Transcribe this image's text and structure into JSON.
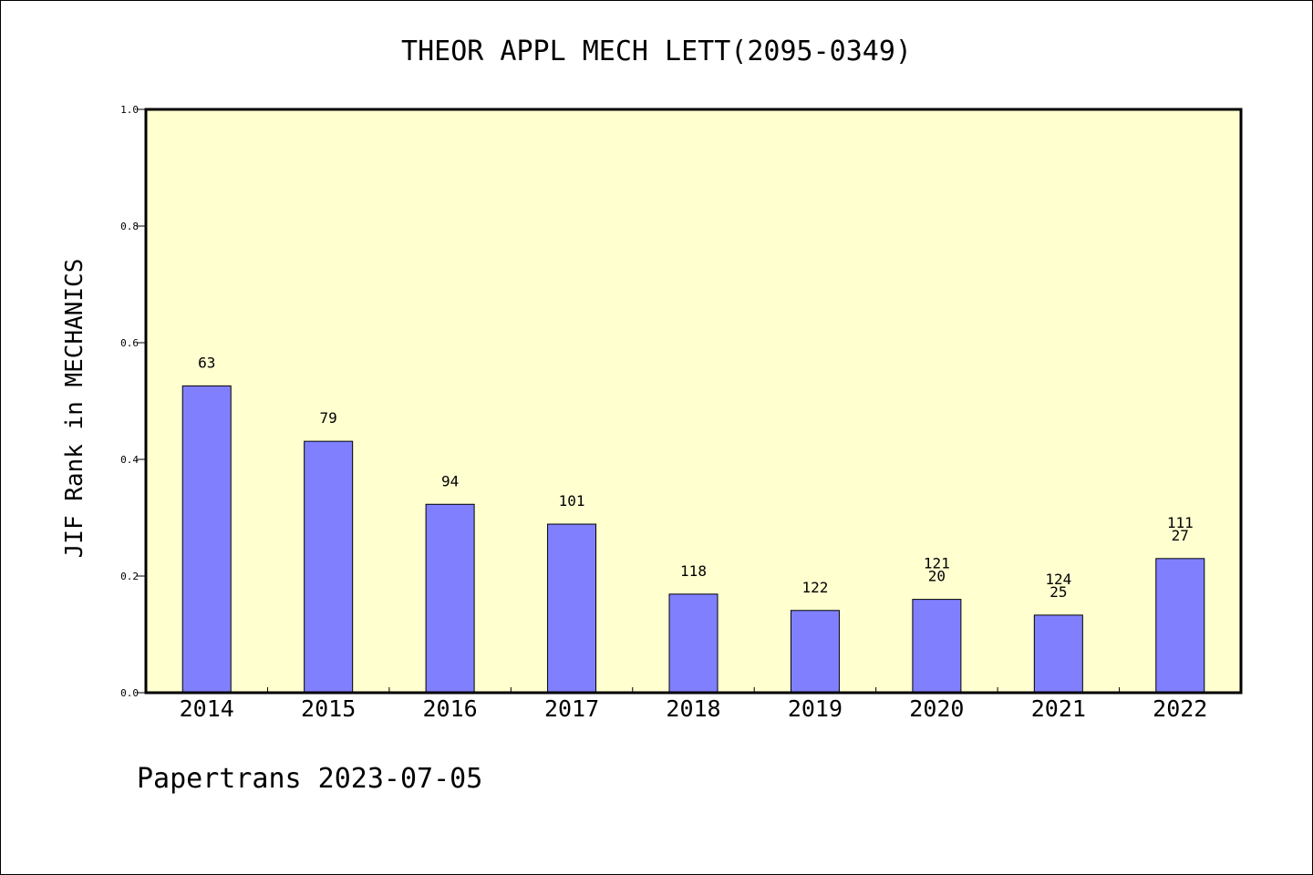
{
  "chart_data": {
    "type": "bar",
    "title": "THEOR APPL MECH LETT(2095-0349)",
    "xlabel": "",
    "ylabel": "JIF Rank in MECHANICS",
    "categories": [
      "2014",
      "2015",
      "2016",
      "2017",
      "2018",
      "2019",
      "2020",
      "2021",
      "2022"
    ],
    "values": [
      0.526,
      0.431,
      0.323,
      0.289,
      0.169,
      0.141,
      0.16,
      0.133,
      0.23
    ],
    "data_labels": [
      [
        "63"
      ],
      [
        "79"
      ],
      [
        "94"
      ],
      [
        "101"
      ],
      [
        "118"
      ],
      [
        "122"
      ],
      [
        "121",
        "20"
      ],
      [
        "124",
        "25"
      ],
      [
        "111",
        "27"
      ]
    ],
    "ylim": [
      0,
      1.0
    ],
    "yticks": [
      "0.0",
      "0.2",
      "0.4",
      "0.6",
      "0.8",
      "1.0"
    ],
    "grid": false,
    "colors": {
      "bar": "#8080ff",
      "plot_background": "#ffffd0",
      "axis": "#000000"
    }
  },
  "footer": "Papertrans 2023-07-05"
}
